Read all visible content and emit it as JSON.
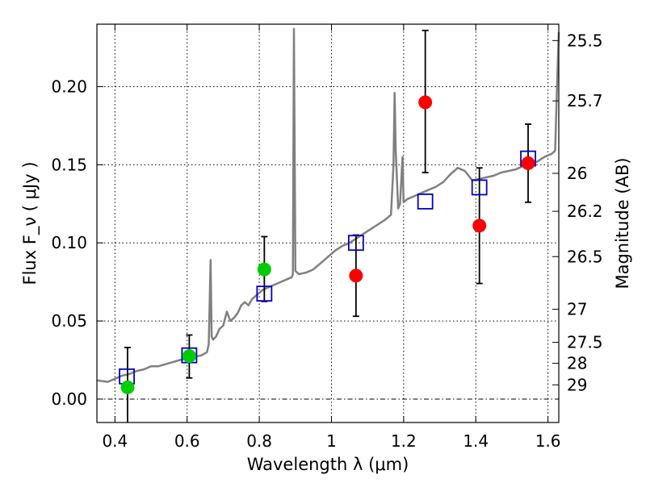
{
  "chart_data": {
    "type": "scatter",
    "xlabel": "Wavelength  λ (μm)",
    "ylabel": "Flux  F_ν  ( μJy )",
    "ylabel_right": "Magnitude (AB)",
    "xlim": [
      0.35,
      1.63
    ],
    "ylim": [
      -0.015,
      0.24
    ],
    "grid": true,
    "x_ticks": [
      {
        "value": 0.4,
        "label": "0.4"
      },
      {
        "value": 0.6,
        "label": "0.6"
      },
      {
        "value": 0.8,
        "label": "0.8"
      },
      {
        "value": 1.0,
        "label": "1"
      },
      {
        "value": 1.2,
        "label": "1.2"
      },
      {
        "value": 1.4,
        "label": "1.4"
      },
      {
        "value": 1.6,
        "label": "1.6"
      }
    ],
    "y_ticks": [
      {
        "value": 0.0,
        "label": "0.00"
      },
      {
        "value": 0.05,
        "label": "0.05"
      },
      {
        "value": 0.1,
        "label": "0.10"
      },
      {
        "value": 0.15,
        "label": "0.15"
      },
      {
        "value": 0.2,
        "label": "0.20"
      }
    ],
    "right_ticks": [
      {
        "label": "25.5",
        "flux": 0.2295
      },
      {
        "label": "25.7",
        "flux": 0.1909
      },
      {
        "label": "26",
        "flux": 0.1445
      },
      {
        "label": "26.2",
        "flux": 0.1202
      },
      {
        "label": "26.5",
        "flux": 0.0912
      },
      {
        "label": "27",
        "flux": 0.0575
      },
      {
        "label": "27.5",
        "flux": 0.0363
      },
      {
        "label": "28",
        "flux": 0.0229
      },
      {
        "label": "29",
        "flux": 0.0091
      }
    ],
    "series": [
      {
        "kind": "spectrum",
        "color": "#808080",
        "points": [
          [
            0.35,
            0.012
          ],
          [
            0.38,
            0.011
          ],
          [
            0.4,
            0.013
          ],
          [
            0.42,
            0.015
          ],
          [
            0.44,
            0.016
          ],
          [
            0.46,
            0.018
          ],
          [
            0.48,
            0.019
          ],
          [
            0.5,
            0.021
          ],
          [
            0.52,
            0.021
          ],
          [
            0.55,
            0.023
          ],
          [
            0.58,
            0.025
          ],
          [
            0.6,
            0.026
          ],
          [
            0.62,
            0.027
          ],
          [
            0.64,
            0.028
          ],
          [
            0.655,
            0.03
          ],
          [
            0.66,
            0.035
          ],
          [
            0.665,
            0.089
          ],
          [
            0.668,
            0.04
          ],
          [
            0.672,
            0.038
          ],
          [
            0.68,
            0.04
          ],
          [
            0.69,
            0.045
          ],
          [
            0.7,
            0.047
          ],
          [
            0.71,
            0.056
          ],
          [
            0.72,
            0.05
          ],
          [
            0.73,
            0.052
          ],
          [
            0.74,
            0.055
          ],
          [
            0.75,
            0.06
          ],
          [
            0.76,
            0.062
          ],
          [
            0.77,
            0.06
          ],
          [
            0.78,
            0.064
          ],
          [
            0.79,
            0.066
          ],
          [
            0.8,
            0.068
          ],
          [
            0.81,
            0.07
          ],
          [
            0.82,
            0.071
          ],
          [
            0.83,
            0.072
          ],
          [
            0.84,
            0.073
          ],
          [
            0.85,
            0.074
          ],
          [
            0.86,
            0.075
          ],
          [
            0.87,
            0.076
          ],
          [
            0.88,
            0.077
          ],
          [
            0.89,
            0.078
          ],
          [
            0.893,
            0.08
          ],
          [
            0.896,
            0.237
          ],
          [
            0.9,
            0.082
          ],
          [
            0.91,
            0.08
          ],
          [
            0.93,
            0.081
          ],
          [
            0.95,
            0.083
          ],
          [
            0.97,
            0.087
          ],
          [
            0.99,
            0.091
          ],
          [
            1.01,
            0.095
          ],
          [
            1.03,
            0.098
          ],
          [
            1.05,
            0.1
          ],
          [
            1.07,
            0.103
          ],
          [
            1.09,
            0.106
          ],
          [
            1.11,
            0.109
          ],
          [
            1.13,
            0.112
          ],
          [
            1.15,
            0.115
          ],
          [
            1.165,
            0.118
          ],
          [
            1.172,
            0.15
          ],
          [
            1.175,
            0.196
          ],
          [
            1.178,
            0.16
          ],
          [
            1.185,
            0.122
          ],
          [
            1.19,
            0.125
          ],
          [
            1.197,
            0.155
          ],
          [
            1.2,
            0.126
          ],
          [
            1.21,
            0.128
          ],
          [
            1.23,
            0.13
          ],
          [
            1.25,
            0.132
          ],
          [
            1.27,
            0.134
          ],
          [
            1.29,
            0.136
          ],
          [
            1.31,
            0.139
          ],
          [
            1.33,
            0.144
          ],
          [
            1.35,
            0.148
          ],
          [
            1.37,
            0.146
          ],
          [
            1.39,
            0.14
          ],
          [
            1.41,
            0.141
          ],
          [
            1.43,
            0.142
          ],
          [
            1.45,
            0.143
          ],
          [
            1.47,
            0.145
          ],
          [
            1.49,
            0.146
          ],
          [
            1.51,
            0.147
          ],
          [
            1.53,
            0.149
          ],
          [
            1.55,
            0.15
          ],
          [
            1.57,
            0.152
          ],
          [
            1.59,
            0.155
          ],
          [
            1.61,
            0.157
          ],
          [
            1.62,
            0.159
          ],
          [
            1.625,
            0.2
          ],
          [
            1.63,
            0.235
          ]
        ]
      },
      {
        "kind": "model-photometry",
        "marker": "open-square",
        "color": "#0000cc",
        "points": [
          [
            0.433,
            0.0145
          ],
          [
            0.606,
            0.028
          ],
          [
            0.814,
            0.0675
          ],
          [
            1.068,
            0.1
          ],
          [
            1.26,
            0.1265
          ],
          [
            1.41,
            0.1355
          ],
          [
            1.545,
            0.154
          ]
        ]
      },
      {
        "kind": "measured-optical",
        "marker": "filled-circle",
        "color": "#00cc00",
        "points": [
          {
            "x": 0.435,
            "y": 0.0075,
            "yerr_lo": -0.02,
            "yerr_hi": 0.033
          },
          {
            "x": 0.606,
            "y": 0.0275,
            "yerr_lo": 0.0135,
            "yerr_hi": 0.041
          },
          {
            "x": 0.814,
            "y": 0.083,
            "yerr_lo": 0.0625,
            "yerr_hi": 0.104
          }
        ]
      },
      {
        "kind": "measured-infrared",
        "marker": "filled-circle",
        "color": "#ff0000",
        "points": [
          {
            "x": 1.068,
            "y": 0.079,
            "yerr_lo": 0.053,
            "yerr_hi": 0.105
          },
          {
            "x": 1.26,
            "y": 0.19,
            "yerr_lo": 0.145,
            "yerr_hi": 0.236
          },
          {
            "x": 1.41,
            "y": 0.111,
            "yerr_lo": 0.074,
            "yerr_hi": 0.148
          },
          {
            "x": 1.545,
            "y": 0.151,
            "yerr_lo": 0.126,
            "yerr_hi": 0.176
          }
        ]
      }
    ]
  }
}
